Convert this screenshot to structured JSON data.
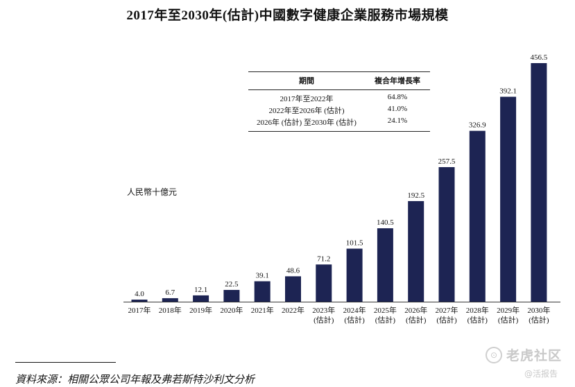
{
  "chart_data": {
    "type": "bar",
    "title": "2017年至2030年(估計)中國數字健康企業服務市場規模",
    "ylabel": "人民幣十億元",
    "xlabel": "",
    "ylim": [
      0,
      456.5
    ],
    "grid": false,
    "categories": [
      [
        "2017年"
      ],
      [
        "2018年"
      ],
      [
        "2019年"
      ],
      [
        "2020年"
      ],
      [
        "2021年"
      ],
      [
        "2022年"
      ],
      [
        "2023年",
        "(估計)"
      ],
      [
        "2024年",
        "(估計)"
      ],
      [
        "2025年",
        "(估計)"
      ],
      [
        "2026年",
        "(估計)"
      ],
      [
        "2027年",
        "(估計)"
      ],
      [
        "2028年",
        "(估計)"
      ],
      [
        "2029年",
        "(估計)"
      ],
      [
        "2030年",
        "(估計)"
      ]
    ],
    "values": [
      4.0,
      6.7,
      12.1,
      22.5,
      39.1,
      48.6,
      71.2,
      101.5,
      140.5,
      192.5,
      257.5,
      326.9,
      392.1,
      456.5
    ],
    "value_labels": [
      "4.0",
      "6.7",
      "12.1",
      "22.5",
      "39.1",
      "48.6",
      "71.2",
      "101.5",
      "140.5",
      "192.5",
      "257.5",
      "326.9",
      "392.1",
      "456.5"
    ],
    "bar_color": "#1d2453"
  },
  "cagr_table": {
    "headers": [
      "期間",
      "複合年增長率"
    ],
    "rows": [
      [
        "2017年至2022年",
        "64.8%"
      ],
      [
        "2022年至2026年 (估計)",
        "41.0%"
      ],
      [
        "2026年 (估計) 至2030年 (估計)",
        "24.1%"
      ]
    ]
  },
  "source": "資料來源：相關公眾公司年報及弗若斯特沙利文分析",
  "watermark": {
    "logo": "⊙",
    "brand": "老虎社区",
    "handle": "@活报告"
  }
}
